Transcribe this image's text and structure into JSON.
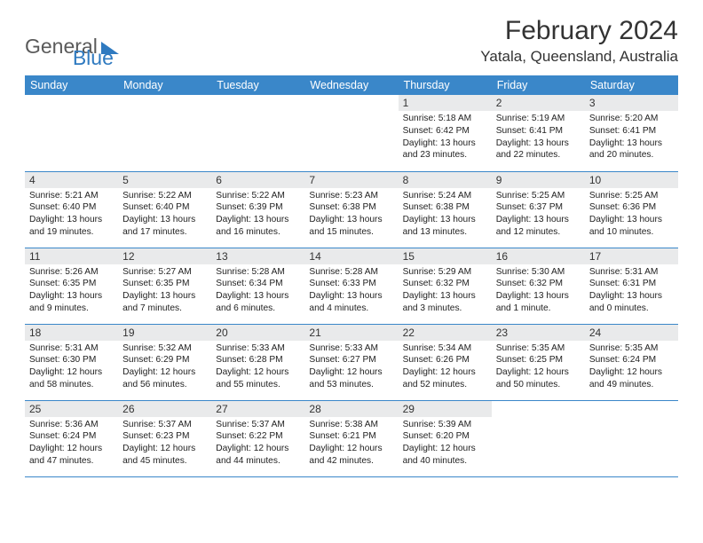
{
  "logo": {
    "text1": "General",
    "text2": "Blue"
  },
  "title": "February 2024",
  "location": "Yatala, Queensland, Australia",
  "colors": {
    "header_bg": "#3a87c9",
    "header_text": "#ffffff",
    "daynum_bg": "#e9eaeb",
    "text": "#333333",
    "logo_gray": "#5a5a5a",
    "logo_blue": "#2f7ac0",
    "row_border": "#3a87c9"
  },
  "day_headers": [
    "Sunday",
    "Monday",
    "Tuesday",
    "Wednesday",
    "Thursday",
    "Friday",
    "Saturday"
  ],
  "weeks": [
    [
      null,
      null,
      null,
      null,
      {
        "n": "1",
        "sr": "5:18 AM",
        "ss": "6:42 PM",
        "dh": "13",
        "dm": "23"
      },
      {
        "n": "2",
        "sr": "5:19 AM",
        "ss": "6:41 PM",
        "dh": "13",
        "dm": "22"
      },
      {
        "n": "3",
        "sr": "5:20 AM",
        "ss": "6:41 PM",
        "dh": "13",
        "dm": "20"
      }
    ],
    [
      {
        "n": "4",
        "sr": "5:21 AM",
        "ss": "6:40 PM",
        "dh": "13",
        "dm": "19"
      },
      {
        "n": "5",
        "sr": "5:22 AM",
        "ss": "6:40 PM",
        "dh": "13",
        "dm": "17"
      },
      {
        "n": "6",
        "sr": "5:22 AM",
        "ss": "6:39 PM",
        "dh": "13",
        "dm": "16"
      },
      {
        "n": "7",
        "sr": "5:23 AM",
        "ss": "6:38 PM",
        "dh": "13",
        "dm": "15"
      },
      {
        "n": "8",
        "sr": "5:24 AM",
        "ss": "6:38 PM",
        "dh": "13",
        "dm": "13"
      },
      {
        "n": "9",
        "sr": "5:25 AM",
        "ss": "6:37 PM",
        "dh": "13",
        "dm": "12"
      },
      {
        "n": "10",
        "sr": "5:25 AM",
        "ss": "6:36 PM",
        "dh": "13",
        "dm": "10"
      }
    ],
    [
      {
        "n": "11",
        "sr": "5:26 AM",
        "ss": "6:35 PM",
        "dh": "13",
        "dm": "9"
      },
      {
        "n": "12",
        "sr": "5:27 AM",
        "ss": "6:35 PM",
        "dh": "13",
        "dm": "7"
      },
      {
        "n": "13",
        "sr": "5:28 AM",
        "ss": "6:34 PM",
        "dh": "13",
        "dm": "6"
      },
      {
        "n": "14",
        "sr": "5:28 AM",
        "ss": "6:33 PM",
        "dh": "13",
        "dm": "4"
      },
      {
        "n": "15",
        "sr": "5:29 AM",
        "ss": "6:32 PM",
        "dh": "13",
        "dm": "3"
      },
      {
        "n": "16",
        "sr": "5:30 AM",
        "ss": "6:32 PM",
        "dh": "13",
        "dm": "1",
        "singular": true
      },
      {
        "n": "17",
        "sr": "5:31 AM",
        "ss": "6:31 PM",
        "dh": "13",
        "dm": "0"
      }
    ],
    [
      {
        "n": "18",
        "sr": "5:31 AM",
        "ss": "6:30 PM",
        "dh": "12",
        "dm": "58"
      },
      {
        "n": "19",
        "sr": "5:32 AM",
        "ss": "6:29 PM",
        "dh": "12",
        "dm": "56"
      },
      {
        "n": "20",
        "sr": "5:33 AM",
        "ss": "6:28 PM",
        "dh": "12",
        "dm": "55"
      },
      {
        "n": "21",
        "sr": "5:33 AM",
        "ss": "6:27 PM",
        "dh": "12",
        "dm": "53"
      },
      {
        "n": "22",
        "sr": "5:34 AM",
        "ss": "6:26 PM",
        "dh": "12",
        "dm": "52"
      },
      {
        "n": "23",
        "sr": "5:35 AM",
        "ss": "6:25 PM",
        "dh": "12",
        "dm": "50"
      },
      {
        "n": "24",
        "sr": "5:35 AM",
        "ss": "6:24 PM",
        "dh": "12",
        "dm": "49"
      }
    ],
    [
      {
        "n": "25",
        "sr": "5:36 AM",
        "ss": "6:24 PM",
        "dh": "12",
        "dm": "47"
      },
      {
        "n": "26",
        "sr": "5:37 AM",
        "ss": "6:23 PM",
        "dh": "12",
        "dm": "45"
      },
      {
        "n": "27",
        "sr": "5:37 AM",
        "ss": "6:22 PM",
        "dh": "12",
        "dm": "44"
      },
      {
        "n": "28",
        "sr": "5:38 AM",
        "ss": "6:21 PM",
        "dh": "12",
        "dm": "42"
      },
      {
        "n": "29",
        "sr": "5:39 AM",
        "ss": "6:20 PM",
        "dh": "12",
        "dm": "40"
      },
      null,
      null
    ]
  ]
}
